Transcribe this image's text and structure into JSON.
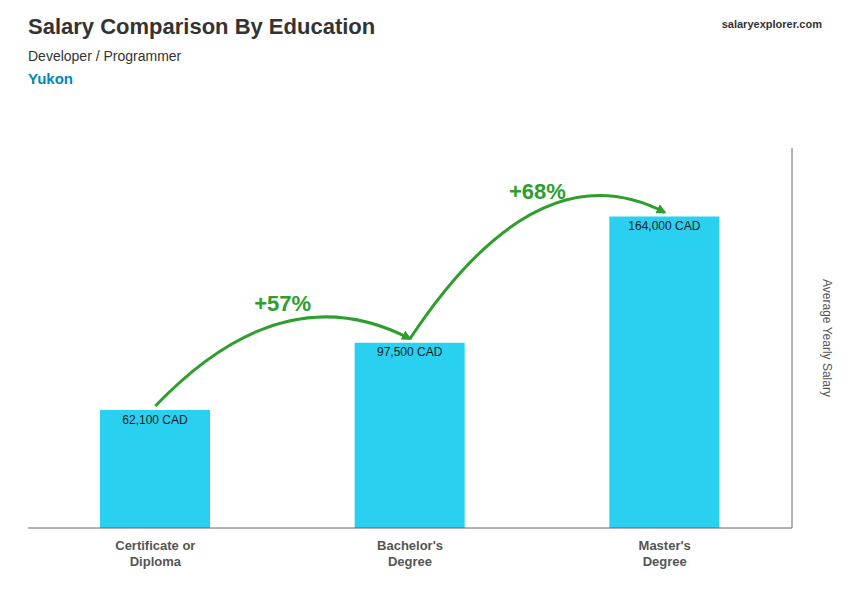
{
  "chart_data": {
    "type": "bar",
    "title": "Salary Comparison By Education",
    "subtitle": "Developer / Programmer",
    "annotations": [
      {
        "text": "Yukon"
      },
      {
        "text": "salaryexplorer.com"
      },
      {
        "text": "+57%",
        "from": "Certificate or\nDiploma",
        "to": "Bachelor's\nDegree"
      },
      {
        "text": "+68%",
        "from": "Bachelor's\nDegree",
        "to": "Master's\nDegree"
      }
    ],
    "ylabel": "Average Yearly Salary",
    "categories": [
      "Certificate or\nDiploma",
      "Bachelor's\nDegree",
      "Master's\nDegree"
    ],
    "values": [
      62100,
      97500,
      164000
    ],
    "value_labels": [
      "62,100 CAD",
      "97,500 CAD",
      "164,000 CAD"
    ],
    "data_labels": true,
    "color": "#29d0f0",
    "ylim": [
      0,
      200000
    ],
    "yticks": [],
    "tick_labels": "x",
    "grid": false
  }
}
